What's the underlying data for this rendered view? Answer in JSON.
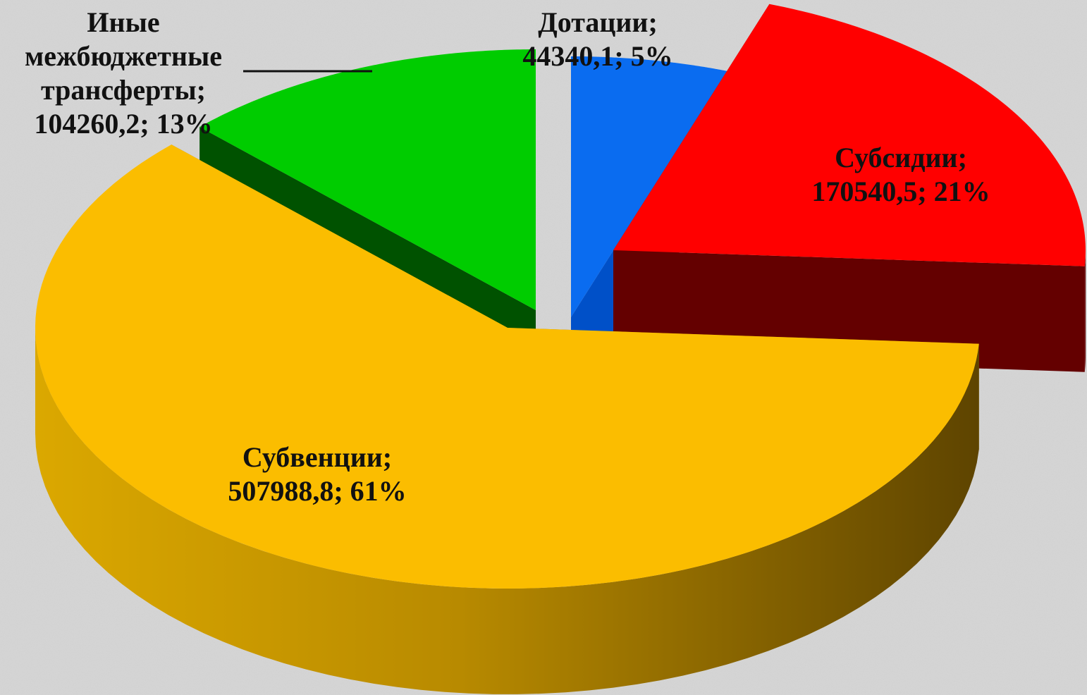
{
  "chart_data": {
    "type": "pie",
    "values": [
      44340.1,
      170540.5,
      507988.8,
      104260.2
    ],
    "value_labels": [
      "Дотации; 44340,1; 5%",
      "Субсидии; 170540,5; 21%",
      "Субвенции; 507988,8; 61%",
      "Иные межбюджетные трансферты; 104260,2; 13%"
    ],
    "colors": [
      "#0a6cf0",
      "#ff0000",
      "#fbbd00",
      "#00cc00"
    ],
    "side_colors": [
      "#0050c8",
      "#640000",
      "#9a7400",
      "#005200"
    ]
  }
}
